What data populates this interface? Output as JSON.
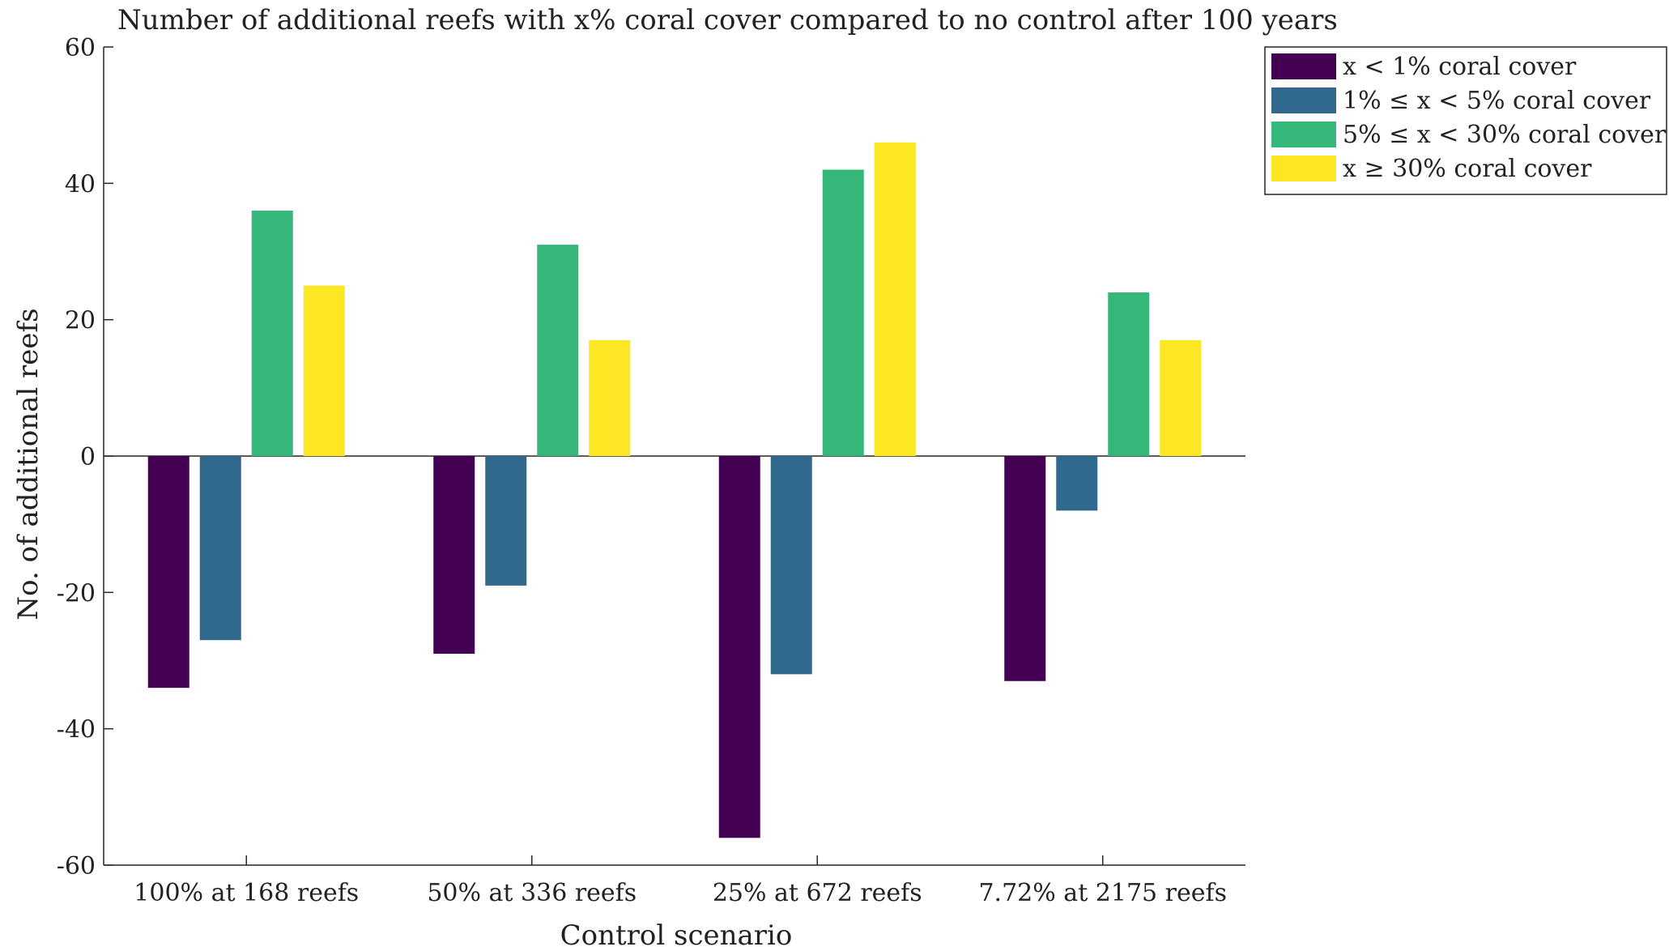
{
  "chart_data": {
    "type": "bar",
    "title": "Number of additional reefs with x% coral cover compared to no control after 100 years",
    "xlabel": "Control scenario",
    "ylabel": "No. of additional reefs",
    "ylim": [
      -60,
      60
    ],
    "yticks": [
      -60,
      -40,
      -20,
      0,
      20,
      40,
      60
    ],
    "ytick_labels": [
      "-60",
      "-40",
      "-20",
      "0",
      "20",
      "40",
      "60"
    ],
    "grid": false,
    "legend_position": "top-right",
    "categories": [
      "100% at 168 reefs",
      "50% at 336 reefs",
      "25% at 672 reefs",
      "7.72% at 2175 reefs"
    ],
    "series": [
      {
        "name": "x < 1% coral cover",
        "color": "#440154",
        "values": [
          -34,
          -29,
          -56,
          -33
        ]
      },
      {
        "name": "1% ≤ x < 5% coral cover",
        "color": "#31688e",
        "values": [
          -27,
          -19,
          -32,
          -8
        ]
      },
      {
        "name": "5% ≤ x < 30% coral cover",
        "color": "#35b779",
        "values": [
          36,
          31,
          42,
          24
        ]
      },
      {
        "name": "x ≥ 30% coral cover",
        "color": "#fde725",
        "values": [
          25,
          17,
          46,
          17
        ]
      }
    ]
  }
}
